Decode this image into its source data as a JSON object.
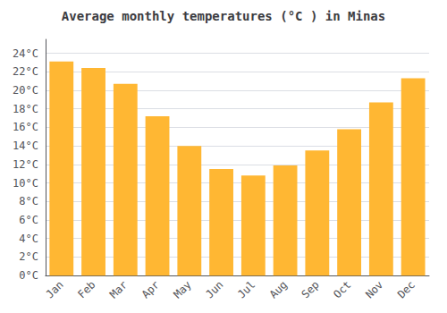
{
  "chart_data": {
    "type": "bar",
    "title": "Average monthly temperatures (°C ) in Minas",
    "categories": [
      "Jan",
      "Feb",
      "Mar",
      "Apr",
      "May",
      "Jun",
      "Jul",
      "Aug",
      "Sep",
      "Oct",
      "Nov",
      "Dec"
    ],
    "values": [
      23.1,
      22.4,
      20.7,
      17.2,
      14.0,
      11.5,
      10.8,
      11.9,
      13.5,
      15.8,
      18.7,
      21.3
    ],
    "color": "#FFB733",
    "ylim": [
      0,
      25.5
    ],
    "yticks": [
      {
        "value": 0,
        "label": "0°C"
      },
      {
        "value": 2,
        "label": "2°C"
      },
      {
        "value": 4,
        "label": "4°C"
      },
      {
        "value": 6,
        "label": "6°C"
      },
      {
        "value": 8,
        "label": "8°C"
      },
      {
        "value": 10,
        "label": "10°C"
      },
      {
        "value": 12,
        "label": "12°C"
      },
      {
        "value": 14,
        "label": "14°C"
      },
      {
        "value": 16,
        "label": "16°C"
      },
      {
        "value": 18,
        "label": "18°C"
      },
      {
        "value": 20,
        "label": "20°C"
      },
      {
        "value": 22,
        "label": "22°C"
      },
      {
        "value": 24,
        "label": "24°C"
      }
    ],
    "grid": true
  }
}
